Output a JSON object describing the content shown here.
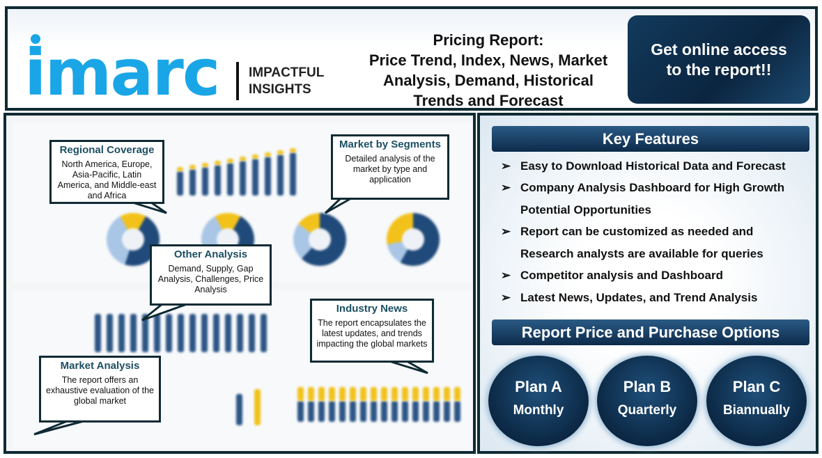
{
  "header": {
    "logo_text": "imarc",
    "tagline_line1": "IMPACTFUL",
    "tagline_line2": "INSIGHTS",
    "title_line1": "Pricing Report:",
    "title_line2": "Price Trend, Index, News, Market",
    "title_line3": "Analysis, Demand, Historical",
    "title_line4": "Trends and Forecast",
    "cta": "Get online access to the report!!"
  },
  "callouts": [
    {
      "title": "Regional Coverage",
      "body": "North America, Europe, Asia-Pacific, Latin America, and Middle-east and Africa"
    },
    {
      "title": "Market by Segments",
      "body": "Detailed analysis of the market by type and application"
    },
    {
      "title": "Other Analysis",
      "body": "Demand, Supply, Gap Analysis, Challenges, Price Analysis"
    },
    {
      "title": "Industry News",
      "body": "The report encapsulates the latest updates, and trends impacting the global markets"
    },
    {
      "title": "Market Analysis",
      "body": "The report offers an exhaustive evaluation of the global market"
    }
  ],
  "key_features": {
    "title": "Key Features",
    "bullet_icon": "arrow-right-icon",
    "bullet": "➢",
    "items": [
      "Easy to Download Historical Data and Forecast",
      "Company Analysis Dashboard for High Growth",
      "Potential Opportunities",
      "Report can be customized as needed and",
      "Research analysts are available for queries",
      "Competitor analysis and Dashboard",
      "Latest News, Updates, and Trend Analysis"
    ]
  },
  "pricing": {
    "title": "Report Price and Purchase Options",
    "plans": [
      {
        "name": "Plan A",
        "period": "Monthly"
      },
      {
        "name": "Plan B",
        "period": "Quarterly"
      },
      {
        "name": "Plan C",
        "period": "Biannually"
      }
    ]
  },
  "colors": {
    "brand": "#1aa6e6",
    "navy": "#0d2b4a",
    "border": "#0f2a33",
    "callout_title": "#1d4f63",
    "chart_yellow": "#f2c21b",
    "chart_blue": "#2d5686"
  }
}
